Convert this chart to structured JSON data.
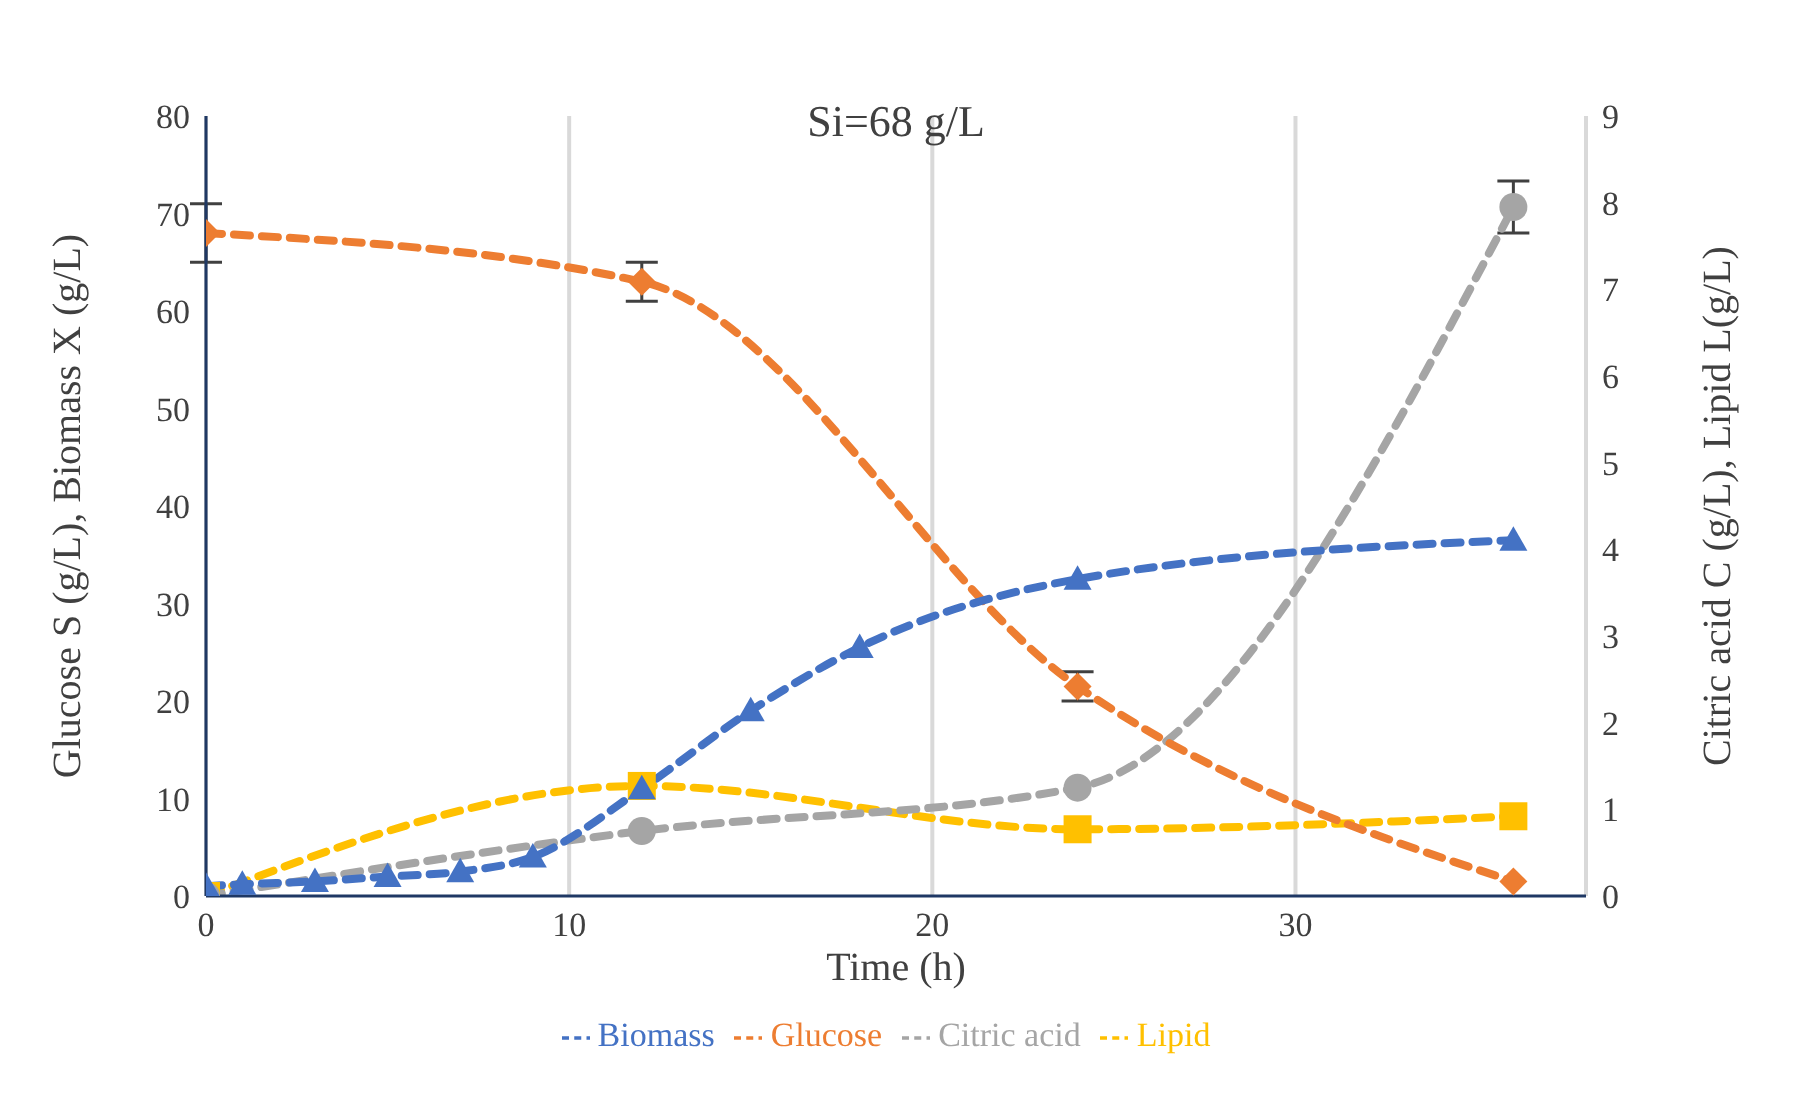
{
  "chart_data": {
    "type": "line",
    "title": "Si=68 g/L",
    "xlabel": "Time (h)",
    "ylabel": "Glucose S (g/L), Biomass X (g/L)",
    "y2label": "Citric acid C (g/L), Lipid L(g/L)",
    "xlim": [
      0,
      38
    ],
    "xticks": [
      0,
      10,
      20,
      30
    ],
    "ylim": [
      0,
      80
    ],
    "yticks": [
      0,
      10,
      20,
      30,
      40,
      50,
      60,
      70,
      80
    ],
    "y2lim": [
      0,
      9
    ],
    "y2ticks": [
      0,
      1,
      2,
      3,
      4,
      5,
      6,
      7,
      8,
      9
    ],
    "grid": "x",
    "legend": "bottom",
    "line_style": "dashed",
    "series": [
      {
        "name": "Biomass",
        "color": "#4472c4",
        "marker": "triangle",
        "x": [
          0,
          1,
          3,
          5,
          7,
          9,
          12,
          15,
          18,
          24,
          36
        ],
        "values": [
          1,
          1.2,
          1.5,
          2,
          2.5,
          4,
          11,
          19,
          25.5,
          32.5,
          36.5
        ]
      },
      {
        "name": "Glucose",
        "color": "#ed7d31",
        "marker": "diamond",
        "x": [
          0,
          12,
          24,
          36
        ],
        "values": [
          68,
          63,
          21.5,
          1.5
        ],
        "errors": [
          3,
          2,
          1.5,
          null
        ]
      },
      {
        "name": "Citric acid",
        "color": "#a5a5a5",
        "marker": "circle",
        "axis": "y2",
        "x": [
          0,
          12,
          24,
          36
        ],
        "values": [
          0,
          0.75,
          1.25,
          7.95
        ],
        "errors": [
          null,
          null,
          null,
          0.3
        ]
      },
      {
        "name": "Lipid",
        "color": "#ffc000",
        "marker": "square",
        "axis": "y2",
        "x": [
          0,
          12,
          24,
          36
        ],
        "values": [
          0,
          1.27,
          0.77,
          0.92
        ]
      }
    ]
  }
}
